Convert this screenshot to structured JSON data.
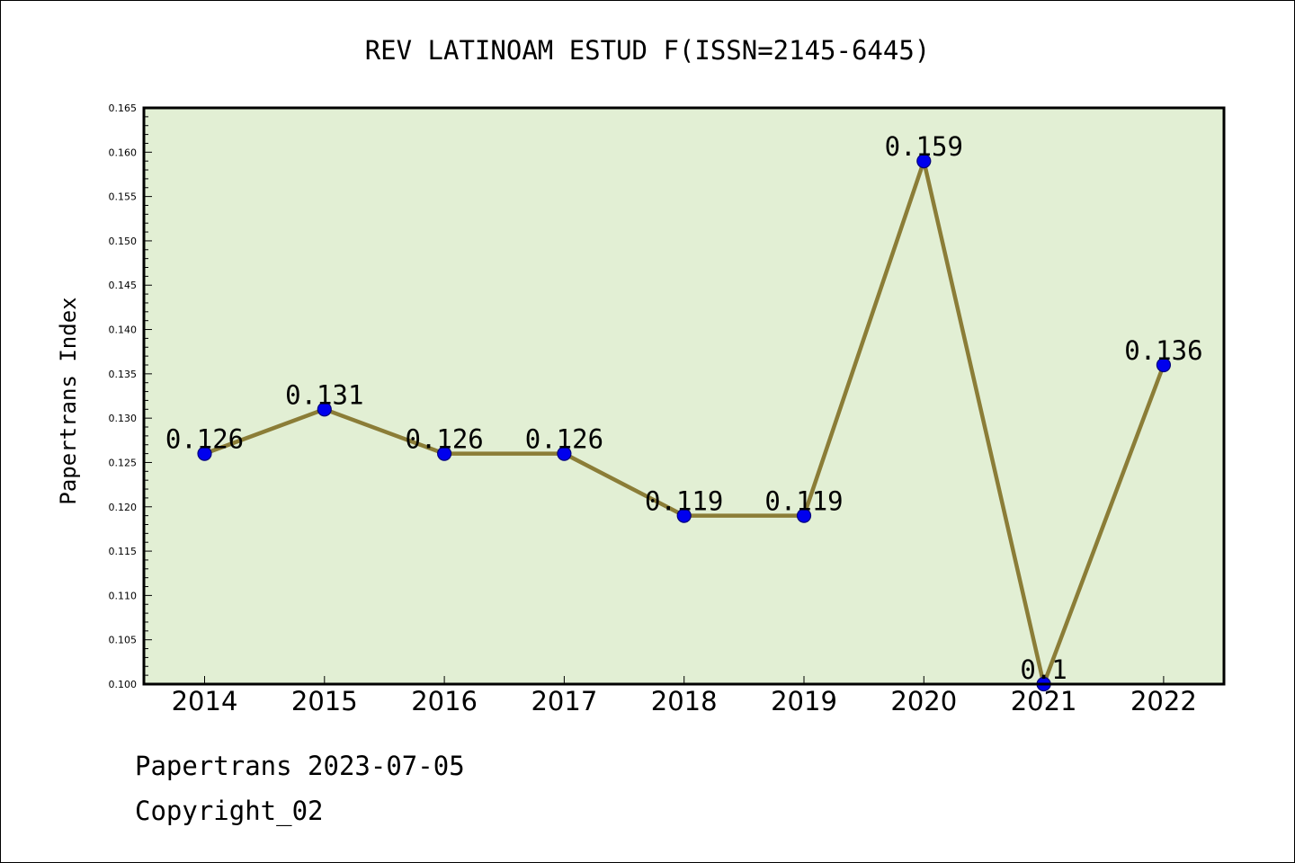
{
  "chart_data": {
    "type": "line",
    "title": "REV LATINOAM ESTUD F(ISSN=2145-6445)",
    "xlabel": "",
    "ylabel": "Papertrans Index",
    "categories": [
      "2014",
      "2015",
      "2016",
      "2017",
      "2018",
      "2019",
      "2020",
      "2021",
      "2022"
    ],
    "values": [
      0.126,
      0.131,
      0.126,
      0.126,
      0.119,
      0.119,
      0.159,
      0.1,
      0.136
    ],
    "data_labels": [
      "0.126",
      "0.131",
      "0.126",
      "0.126",
      "0.119",
      "0.119",
      "0.159",
      "0.1",
      "0.136"
    ],
    "ylim": [
      0.1,
      0.165
    ],
    "yticks": [
      "0.100",
      "0.105",
      "0.110",
      "0.115",
      "0.120",
      "0.125",
      "0.130",
      "0.135",
      "0.140",
      "0.145",
      "0.150",
      "0.155",
      "0.160",
      "0.165"
    ],
    "grid": false,
    "legend": "none",
    "colors": {
      "plot_background": "#e2efd4",
      "line": "#8b7d37",
      "marker_fill": "#0000ee",
      "marker_edge": "#00007a",
      "axes": "#000000"
    }
  },
  "footer": {
    "date_line": "Papertrans 2023-07-05",
    "copyright_line": "Copyright_02"
  }
}
